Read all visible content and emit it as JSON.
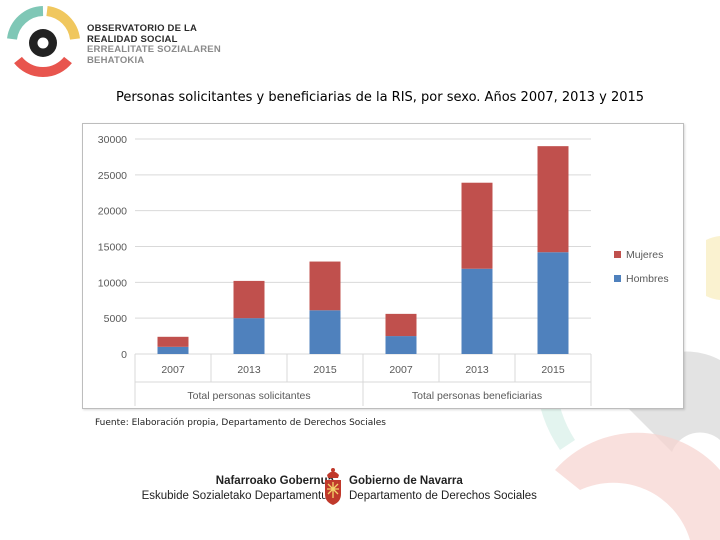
{
  "header": {
    "org_line1": "OBSERVATORIO DE LA",
    "org_line2": "REALIDAD SOCIAL",
    "org_line3": "ERREALITATE SOZIALAREN",
    "org_line4": "BEHATOKIA"
  },
  "slide_title": "Personas solicitantes y beneficiarias de la RIS, por sexo. Años 2007, 2013 y 2015",
  "source_note": "Fuente: Elaboración propia, Departamento de Derechos Sociales",
  "footer": {
    "left_line1": "Nafarroako Gobernua",
    "left_line2": "Eskubide Sozialetako Departamentua",
    "right_line1": "Gobierno de Navarra",
    "right_line2": "Departamento de Derechos Sociales"
  },
  "colors": {
    "mujeres": "#c0504d",
    "hombres": "#4f81bd",
    "logo_teal": "#7fc7b6",
    "logo_yellow": "#f0c75e",
    "logo_red": "#e8554e",
    "logo_dark": "#222222"
  },
  "chart_data": {
    "type": "bar",
    "stacked": true,
    "title": "",
    "xlabel": "",
    "ylabel": "",
    "ylim": [
      0,
      30000
    ],
    "yticks": [
      0,
      5000,
      10000,
      15000,
      20000,
      25000,
      30000
    ],
    "ytick_labels": [
      "0",
      "5000",
      "10000",
      "15000",
      "20000",
      "25000",
      "30000"
    ],
    "grid": true,
    "legend_position": "right",
    "groups": [
      "Total personas solicitantes",
      "Total personas beneficiarias"
    ],
    "categories": [
      "2007",
      "2013",
      "2015",
      "2007",
      "2013",
      "2015"
    ],
    "category_group": [
      0,
      0,
      0,
      1,
      1,
      1
    ],
    "series": [
      {
        "name": "Hombres",
        "color": "#4f81bd",
        "values": [
          1000,
          5000,
          6100,
          2500,
          11900,
          14200
        ]
      },
      {
        "name": "Mujeres",
        "color": "#c0504d",
        "values": [
          1400,
          5200,
          6800,
          3100,
          12000,
          14800
        ]
      }
    ],
    "legend": [
      "Mujeres",
      "Hombres"
    ]
  }
}
